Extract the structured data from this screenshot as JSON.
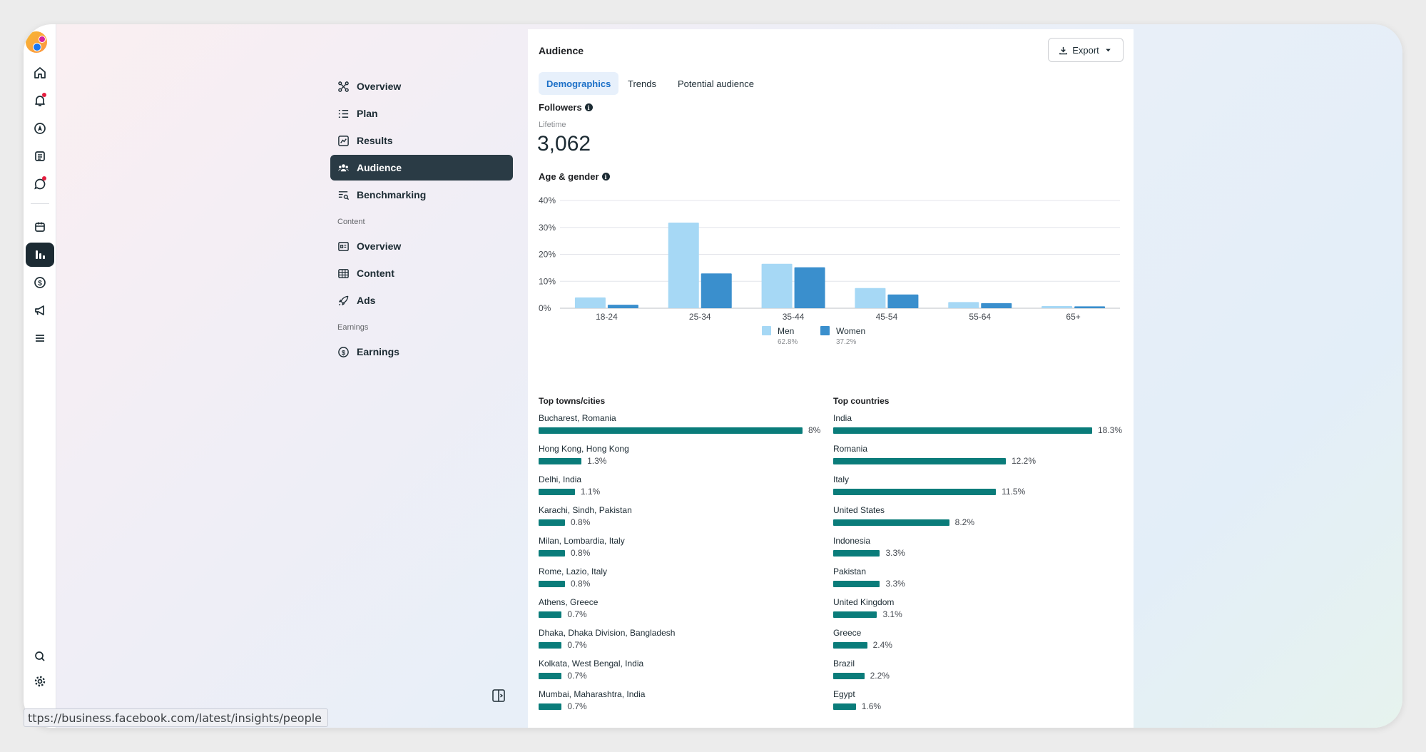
{
  "nav": {
    "items": [
      {
        "label": "Overview",
        "icon": "overview-icon"
      },
      {
        "label": "Plan",
        "icon": "plan-icon"
      },
      {
        "label": "Results",
        "icon": "results-icon"
      },
      {
        "label": "Audience",
        "icon": "audience-icon",
        "active": true
      },
      {
        "label": "Benchmarking",
        "icon": "benchmarking-icon"
      }
    ],
    "content_section": "Content",
    "content_items": [
      {
        "label": "Overview",
        "icon": "content-overview-icon"
      },
      {
        "label": "Content",
        "icon": "content-table-icon"
      },
      {
        "label": "Ads",
        "icon": "rocket-icon"
      }
    ],
    "earnings_section": "Earnings",
    "earnings_items": [
      {
        "label": "Earnings",
        "icon": "dollar-icon"
      }
    ]
  },
  "panel": {
    "title": "Audience",
    "export_label": "Export",
    "tabs": [
      "Demographics",
      "Trends",
      "Potential audience"
    ],
    "active_tab": "Demographics",
    "followers_label": "Followers",
    "lifetime_label": "Lifetime",
    "followers_value": "3,062",
    "age_gender_label": "Age & gender",
    "top_cities_label": "Top towns/cities",
    "top_countries_label": "Top countries"
  },
  "chart_data": {
    "type": "bar",
    "title": "Age & gender",
    "categories": [
      "18-24",
      "25-34",
      "35-44",
      "45-54",
      "55-64",
      "65+"
    ],
    "series": [
      {
        "name": "Men",
        "share": "62.8%",
        "color": "#a6d8f5",
        "values": [
          4.0,
          31.8,
          16.5,
          7.5,
          2.3,
          0.8
        ]
      },
      {
        "name": "Women",
        "share": "37.2%",
        "color": "#3a8fcd",
        "values": [
          1.3,
          12.9,
          15.2,
          5.1,
          1.9,
          0.7
        ]
      }
    ],
    "yticks": [
      "0%",
      "10%",
      "20%",
      "30%",
      "40%"
    ],
    "ylim": [
      0,
      40
    ],
    "grid": true,
    "legend": "bottom"
  },
  "top_cities": [
    {
      "name": "Bucharest, Romania",
      "pct": "8%",
      "value": 8.0
    },
    {
      "name": "Hong Kong, Hong Kong",
      "pct": "1.3%",
      "value": 1.3
    },
    {
      "name": "Delhi, India",
      "pct": "1.1%",
      "value": 1.1
    },
    {
      "name": "Karachi, Sindh, Pakistan",
      "pct": "0.8%",
      "value": 0.8
    },
    {
      "name": "Milan, Lombardia, Italy",
      "pct": "0.8%",
      "value": 0.8
    },
    {
      "name": "Rome, Lazio, Italy",
      "pct": "0.8%",
      "value": 0.8
    },
    {
      "name": "Athens, Greece",
      "pct": "0.7%",
      "value": 0.7
    },
    {
      "name": "Dhaka, Dhaka Division, Bangladesh",
      "pct": "0.7%",
      "value": 0.7
    },
    {
      "name": "Kolkata, West Bengal, India",
      "pct": "0.7%",
      "value": 0.7
    },
    {
      "name": "Mumbai, Maharashtra, India",
      "pct": "0.7%",
      "value": 0.7
    }
  ],
  "top_countries": [
    {
      "name": "India",
      "pct": "18.3%",
      "value": 18.3
    },
    {
      "name": "Romania",
      "pct": "12.2%",
      "value": 12.2
    },
    {
      "name": "Italy",
      "pct": "11.5%",
      "value": 11.5
    },
    {
      "name": "United States",
      "pct": "8.2%",
      "value": 8.2
    },
    {
      "name": "Indonesia",
      "pct": "3.3%",
      "value": 3.3
    },
    {
      "name": "Pakistan",
      "pct": "3.3%",
      "value": 3.3
    },
    {
      "name": "United Kingdom",
      "pct": "3.1%",
      "value": 3.1
    },
    {
      "name": "Greece",
      "pct": "2.4%",
      "value": 2.4
    },
    {
      "name": "Brazil",
      "pct": "2.2%",
      "value": 2.2
    },
    {
      "name": "Egypt",
      "pct": "1.6%",
      "value": 1.6
    }
  ],
  "status_url": "ttps://business.facebook.com/latest/insights/people",
  "rail_icons": [
    "home-icon",
    "notifications-icon",
    "compass-icon",
    "pages-icon",
    "messages-icon",
    "calendar-icon",
    "insights-icon",
    "monetization-icon",
    "ads-icon",
    "menu-icon",
    "search-icon",
    "settings-icon"
  ]
}
